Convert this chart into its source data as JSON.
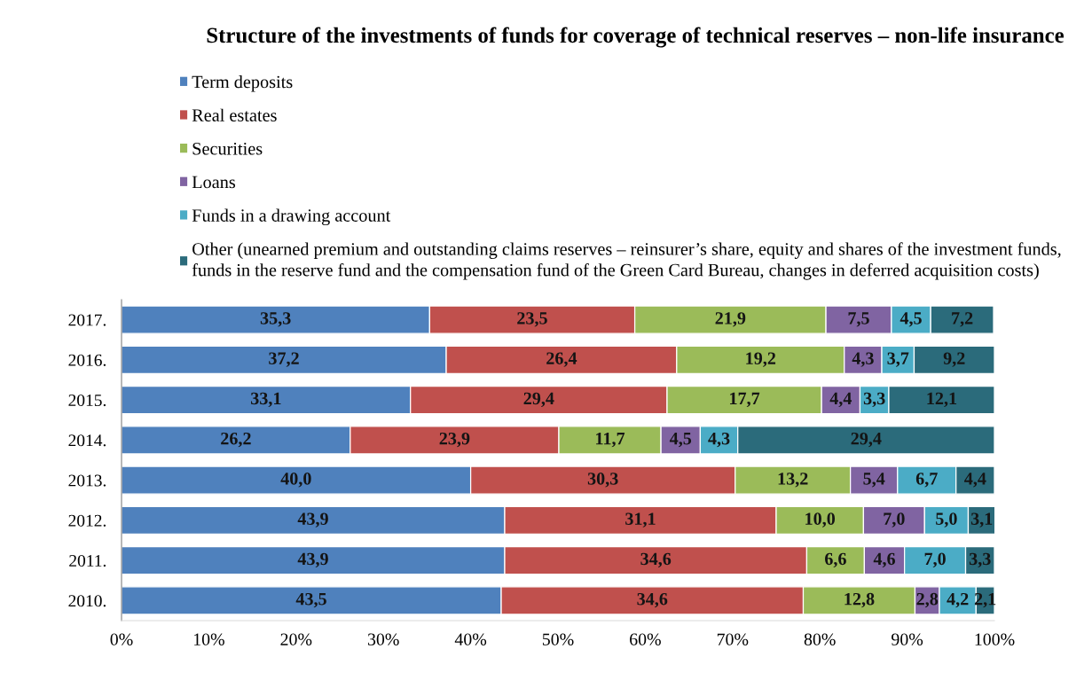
{
  "chart_data": {
    "type": "bar",
    "orientation": "horizontal",
    "stacked": true,
    "title": "Structure of the investments of funds for coverage of technical reserves – non-life insurance",
    "categories": [
      "2017.",
      "2016.",
      "2015.",
      "2014.",
      "2013.",
      "2012.",
      "2011.",
      "2010."
    ],
    "series": [
      {
        "name": "Term deposits",
        "color": "#4f81bd",
        "values": [
          35.3,
          37.2,
          33.1,
          26.2,
          40.0,
          43.9,
          43.9,
          43.5
        ],
        "value_labels": [
          "35,3",
          "37,2",
          "33,1",
          "26,2",
          "40,0",
          "43,9",
          "43,9",
          "43,5"
        ]
      },
      {
        "name": "Real estates",
        "color": "#c0504d",
        "values": [
          23.5,
          26.4,
          29.4,
          23.9,
          30.3,
          31.1,
          34.6,
          34.6
        ],
        "value_labels": [
          "23,5",
          "26,4",
          "29,4",
          "23,9",
          "30,3",
          "31,1",
          "34,6",
          "34,6"
        ]
      },
      {
        "name": "Securities",
        "color": "#9bbb59",
        "values": [
          21.9,
          19.2,
          17.7,
          11.7,
          13.2,
          10.0,
          6.6,
          12.8
        ],
        "value_labels": [
          "21,9",
          "19,2",
          "17,7",
          "11,7",
          "13,2",
          "10,0",
          "6,6",
          "12,8"
        ]
      },
      {
        "name": "Loans",
        "color": "#8064a2",
        "values": [
          7.5,
          4.3,
          4.4,
          4.5,
          5.4,
          7.0,
          4.6,
          2.8
        ],
        "value_labels": [
          "7,5",
          "4,3",
          "4,4",
          "4,5",
          "5,4",
          "7,0",
          "4,6",
          "2,8"
        ]
      },
      {
        "name": "Funds in a drawing account",
        "color": "#4bacc6",
        "values": [
          4.5,
          3.7,
          3.3,
          4.3,
          6.7,
          5.0,
          7.0,
          4.2
        ],
        "value_labels": [
          "4,5",
          "3,7",
          "3,3",
          "4,3",
          "6,7",
          "5,0",
          "7,0",
          "4,2"
        ]
      },
      {
        "name": "Other (unearned premium and outstanding claims reserves – reinsurer’s share, equity and shares of the investment funds, funds in the reserve fund and the compensation fund of the Green Card Bureau, changes in deferred acquisition costs)",
        "color": "#2b6b7b",
        "values": [
          7.2,
          9.2,
          12.1,
          29.4,
          4.4,
          3.1,
          3.3,
          2.1
        ],
        "value_labels": [
          "7,2",
          "9,2",
          "12,1",
          "29,4",
          "4,4",
          "3,1",
          "3,3",
          "2,1"
        ]
      }
    ],
    "xlim": [
      0,
      100
    ],
    "xticks": [
      {
        "value": 0,
        "label": "0%"
      },
      {
        "value": 10,
        "label": "10%"
      },
      {
        "value": 20,
        "label": "20%"
      },
      {
        "value": 30,
        "label": "30%"
      },
      {
        "value": 40,
        "label": "40%"
      },
      {
        "value": 50,
        "label": "50%"
      },
      {
        "value": 60,
        "label": "60%"
      },
      {
        "value": 70,
        "label": "70%"
      },
      {
        "value": 80,
        "label": "80%"
      },
      {
        "value": 90,
        "label": "90%"
      },
      {
        "value": 100,
        "label": "100%"
      }
    ],
    "legend": "top",
    "grid": false
  }
}
